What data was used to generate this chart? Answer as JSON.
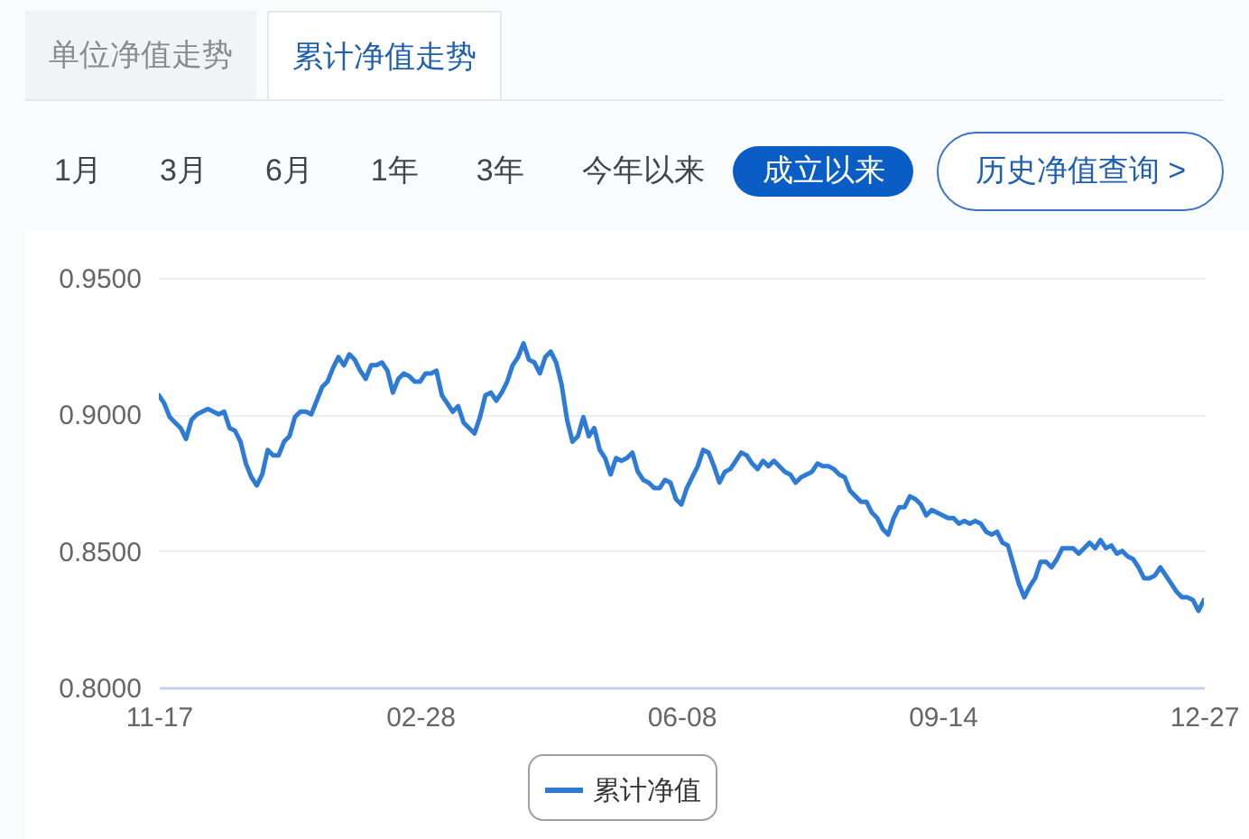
{
  "chart_data": {
    "type": "line",
    "annotations": [
      "单位净值走势",
      "累计净值走势",
      "1月",
      "3月",
      "6月",
      "1年",
      "3年",
      "今年以来",
      "成立以来",
      "历史净值查询 >"
    ],
    "categories": [
      "11-17",
      null,
      null,
      null,
      null,
      null,
      null,
      null,
      null,
      null,
      null,
      null,
      null,
      null,
      null,
      null,
      null,
      null,
      null,
      null,
      null,
      null,
      null,
      null,
      null,
      null,
      null,
      null,
      null,
      null,
      null,
      null,
      null,
      null,
      null,
      null,
      null,
      null,
      null,
      null,
      null,
      null,
      null,
      null,
      null,
      null,
      null,
      null,
      "02-28",
      null,
      null,
      null,
      null,
      null,
      null,
      null,
      null,
      null,
      null,
      null,
      null,
      null,
      null,
      null,
      null,
      null,
      null,
      null,
      null,
      null,
      null,
      null,
      null,
      null,
      null,
      null,
      null,
      null,
      null,
      null,
      null,
      null,
      null,
      null,
      null,
      null,
      null,
      null,
      null,
      null,
      null,
      null,
      null,
      null,
      null,
      null,
      "06-08",
      null,
      null,
      null,
      null,
      null,
      null,
      null,
      null,
      null,
      null,
      null,
      null,
      null,
      null,
      null,
      null,
      null,
      null,
      null,
      null,
      null,
      null,
      null,
      null,
      null,
      null,
      null,
      null,
      null,
      null,
      null,
      null,
      null,
      null,
      null,
      null,
      null,
      null,
      null,
      null,
      null,
      null,
      null,
      null,
      null,
      null,
      null,
      "09-14",
      null,
      null,
      null,
      null,
      null,
      null,
      null,
      null,
      null,
      null,
      null,
      null,
      null,
      null,
      null,
      null,
      null,
      null,
      null,
      null,
      null,
      null,
      null,
      null,
      null,
      null,
      null,
      null,
      null,
      null,
      null,
      null,
      null,
      null,
      null,
      null,
      null,
      null,
      null,
      null,
      null,
      null,
      null,
      null,
      null,
      null,
      null,
      "12-27"
    ],
    "series": [
      {
        "name": "累计净值",
        "color": "#2e7bd5",
        "values": [
          0.907,
          0.904,
          0.899,
          0.897,
          0.895,
          0.891,
          0.898,
          0.9,
          0.901,
          0.902,
          0.901,
          0.9,
          0.901,
          0.895,
          0.894,
          0.89,
          0.882,
          0.877,
          0.874,
          0.878,
          0.887,
          0.885,
          0.885,
          0.89,
          0.892,
          0.899,
          0.901,
          0.901,
          0.9,
          0.905,
          0.91,
          0.912,
          0.917,
          0.921,
          0.918,
          0.922,
          0.92,
          0.916,
          0.913,
          0.918,
          0.918,
          0.919,
          0.916,
          0.908,
          0.913,
          0.915,
          0.914,
          0.912,
          0.912,
          0.915,
          0.915,
          0.916,
          0.907,
          0.904,
          0.901,
          0.903,
          0.897,
          0.895,
          0.893,
          0.899,
          0.907,
          0.908,
          0.905,
          0.908,
          0.912,
          0.918,
          0.921,
          0.926,
          0.92,
          0.919,
          0.915,
          0.921,
          0.923,
          0.919,
          0.911,
          0.898,
          0.89,
          0.892,
          0.899,
          0.892,
          0.895,
          0.887,
          0.884,
          0.878,
          0.884,
          0.883,
          0.884,
          0.886,
          0.879,
          0.876,
          0.875,
          0.873,
          0.873,
          0.876,
          0.875,
          0.869,
          0.867,
          0.873,
          0.877,
          0.881,
          0.887,
          0.886,
          0.881,
          0.875,
          0.879,
          0.88,
          0.883,
          0.886,
          0.885,
          0.882,
          0.88,
          0.883,
          0.881,
          0.883,
          0.881,
          0.879,
          0.878,
          0.875,
          0.877,
          0.878,
          0.879,
          0.882,
          0.881,
          0.881,
          0.88,
          0.878,
          0.877,
          0.872,
          0.87,
          0.868,
          0.868,
          0.864,
          0.862,
          0.858,
          0.856,
          0.862,
          0.866,
          0.866,
          0.87,
          0.869,
          0.867,
          0.863,
          0.865,
          0.864,
          0.863,
          0.862,
          0.862,
          0.86,
          0.861,
          0.86,
          0.861,
          0.86,
          0.857,
          0.856,
          0.857,
          0.853,
          0.852,
          0.845,
          0.838,
          0.833,
          0.837,
          0.84,
          0.846,
          0.846,
          0.844,
          0.847,
          0.851,
          0.851,
          0.851,
          0.849,
          0.851,
          0.853,
          0.851,
          0.854,
          0.851,
          0.852,
          0.849,
          0.85,
          0.848,
          0.847,
          0.844,
          0.84,
          0.84,
          0.841,
          0.844,
          0.841,
          0.838,
          0.835,
          0.833,
          0.833,
          0.832,
          0.828,
          0.832
        ]
      }
    ],
    "ylim": [
      0.8,
      0.95
    ],
    "yticks": [
      {
        "value": 0.8,
        "label": "0.8000"
      },
      {
        "value": 0.85,
        "label": "0.8500"
      },
      {
        "value": 0.9,
        "label": "0.9000"
      },
      {
        "value": 0.95,
        "label": "0.9500"
      }
    ],
    "grid": "y",
    "legend": "bottom"
  }
}
